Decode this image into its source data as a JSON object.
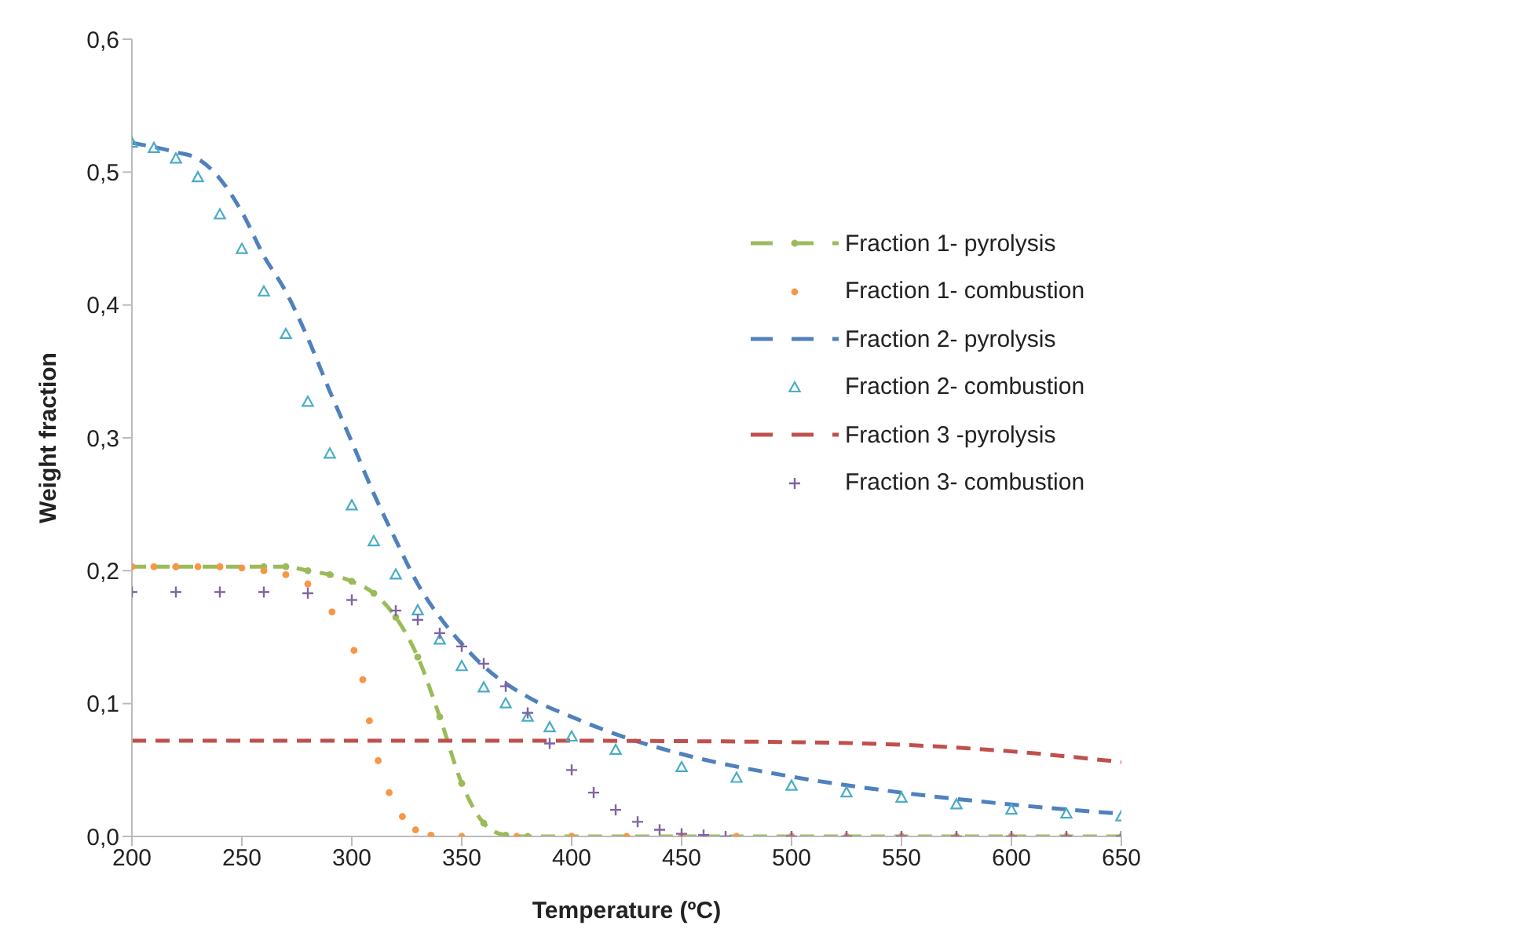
{
  "chart_data": {
    "type": "line",
    "xlabel": "Temperature (ºC)",
    "ylabel": "Weight fraction",
    "xlim": [
      200,
      650
    ],
    "ylim": [
      0,
      0.6
    ],
    "xticks": [
      200,
      250,
      300,
      350,
      400,
      450,
      500,
      550,
      600,
      650
    ],
    "yticks": [
      {
        "value": 0,
        "label": "0,0"
      },
      {
        "value": 0.1,
        "label": "0,1"
      },
      {
        "value": 0.2,
        "label": "0,2"
      },
      {
        "value": 0.3,
        "label": "0,3"
      },
      {
        "value": 0.4,
        "label": "0,4"
      },
      {
        "value": 0.5,
        "label": "0,5"
      },
      {
        "value": 0.6,
        "label": "0,6"
      }
    ],
    "grid": false,
    "legend": "right",
    "series": [
      {
        "name": "Fraction 1- pyrolysis",
        "line_style": "dashed",
        "marker": "circle",
        "color": "#9bbb59",
        "x": [
          200,
          220,
          240,
          260,
          270,
          280,
          290,
          300,
          310,
          320,
          330,
          340,
          350,
          360,
          370,
          380,
          400,
          450,
          500,
          550,
          600,
          650
        ],
        "values": [
          0.203,
          0.203,
          0.203,
          0.203,
          0.203,
          0.2,
          0.197,
          0.192,
          0.183,
          0.165,
          0.135,
          0.09,
          0.04,
          0.01,
          0.001,
          0,
          0,
          0,
          0,
          0,
          0,
          0
        ]
      },
      {
        "name": "Fraction 1- combustion",
        "type": "scatter",
        "marker": "circle",
        "color": "#f79646",
        "x": [
          200,
          210,
          220,
          230,
          240,
          250,
          260,
          270,
          280,
          291,
          301,
          305,
          308,
          312,
          317,
          323,
          329,
          336,
          350,
          375,
          400,
          425,
          450,
          475,
          500,
          525,
          550,
          575,
          600,
          625
        ],
        "values": [
          0.203,
          0.203,
          0.203,
          0.203,
          0.203,
          0.202,
          0.2,
          0.197,
          0.19,
          0.169,
          0.14,
          0.118,
          0.087,
          0.057,
          0.033,
          0.015,
          0.005,
          0.001,
          0,
          0,
          0,
          0,
          0,
          0,
          0,
          0,
          0,
          0,
          0,
          0
        ]
      },
      {
        "name": "Fraction 2- pyrolysis",
        "line_style": "dashed",
        "marker": "none",
        "color": "#4f81bd",
        "x": [
          200,
          220,
          230,
          240,
          250,
          260,
          270,
          280,
          290,
          300,
          310,
          320,
          330,
          340,
          350,
          360,
          380,
          400,
          420,
          450,
          500,
          550,
          600,
          650
        ],
        "values": [
          0.522,
          0.515,
          0.51,
          0.495,
          0.47,
          0.437,
          0.41,
          0.375,
          0.335,
          0.297,
          0.258,
          0.223,
          0.19,
          0.165,
          0.145,
          0.128,
          0.105,
          0.09,
          0.077,
          0.062,
          0.045,
          0.033,
          0.024,
          0.017
        ]
      },
      {
        "name": "Fraction 2- combustion",
        "type": "scatter",
        "marker": "triangle",
        "color": "#4bacc6",
        "x": [
          200,
          210,
          220,
          230,
          240,
          250,
          260,
          270,
          280,
          290,
          300,
          310,
          320,
          330,
          340,
          350,
          360,
          370,
          380,
          390,
          400,
          420,
          450,
          475,
          500,
          525,
          550,
          575,
          600,
          625,
          650
        ],
        "values": [
          0.522,
          0.518,
          0.51,
          0.496,
          0.468,
          0.442,
          0.41,
          0.378,
          0.327,
          0.288,
          0.249,
          0.222,
          0.197,
          0.17,
          0.148,
          0.128,
          0.112,
          0.1,
          0.09,
          0.082,
          0.075,
          0.065,
          0.052,
          0.044,
          0.038,
          0.033,
          0.029,
          0.024,
          0.02,
          0.017,
          0.015
        ]
      },
      {
        "name": "Fraction 3 -pyrolysis",
        "line_style": "dashed",
        "marker": "none",
        "color": "#c0504d",
        "x": [
          200,
          300,
          400,
          500,
          550,
          600,
          650
        ],
        "values": [
          0.072,
          0.072,
          0.072,
          0.071,
          0.069,
          0.064,
          0.056
        ]
      },
      {
        "name": "Fraction 3- combustion",
        "type": "scatter",
        "marker": "cross",
        "color": "#8064a2",
        "x": [
          200,
          220,
          240,
          260,
          280,
          300,
          320,
          330,
          340,
          350,
          360,
          370,
          380,
          390,
          400,
          410,
          420,
          430,
          440,
          450,
          460,
          470,
          500,
          525,
          550,
          575,
          600,
          625,
          650
        ],
        "values": [
          0.184,
          0.184,
          0.184,
          0.184,
          0.183,
          0.178,
          0.17,
          0.163,
          0.153,
          0.143,
          0.13,
          0.113,
          0.093,
          0.07,
          0.05,
          0.033,
          0.02,
          0.011,
          0.005,
          0.002,
          0.001,
          0,
          0,
          0,
          0,
          0,
          0,
          0,
          0
        ]
      }
    ]
  }
}
